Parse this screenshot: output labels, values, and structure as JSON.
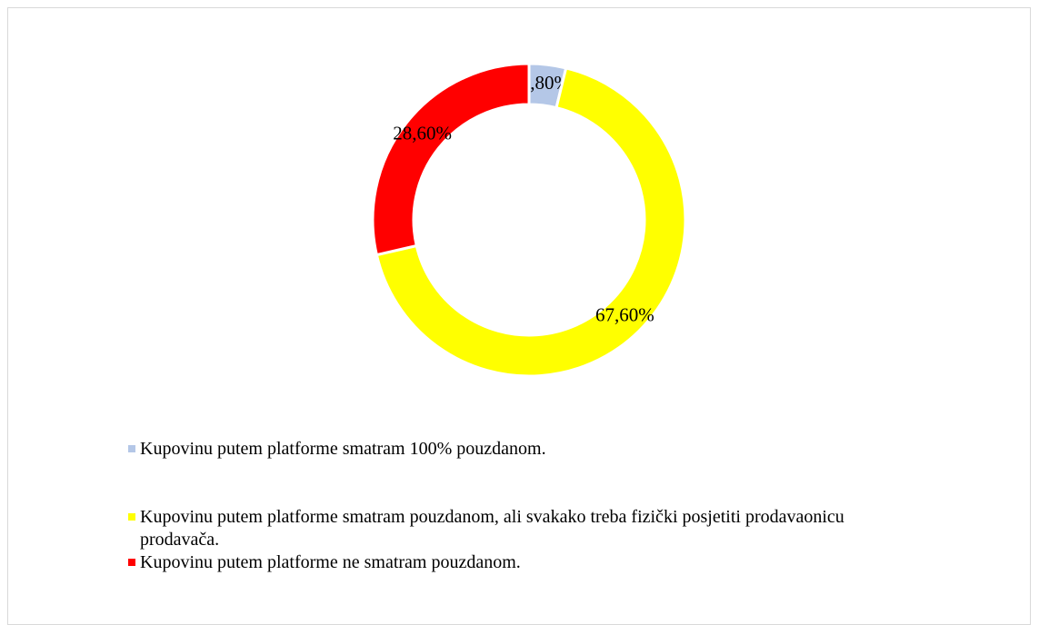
{
  "chart_data": {
    "type": "pie",
    "categories": [
      "Kupovinu putem platforme smatram 100% pouzdanom.",
      "Kupovinu putem platforme smatram pouzdanom, ali svakako treba fizički posjetiti prodavaonicu prodavača.",
      "Kupovinu putem platforme ne smatram pouzdanom."
    ],
    "values": [
      3.8,
      67.6,
      28.6
    ],
    "value_labels": [
      "3,80%",
      "67,60%",
      "28,60%"
    ],
    "colors": [
      "#b4c7e7",
      "#ffff00",
      "#ff0000"
    ],
    "legend": "bottom"
  }
}
